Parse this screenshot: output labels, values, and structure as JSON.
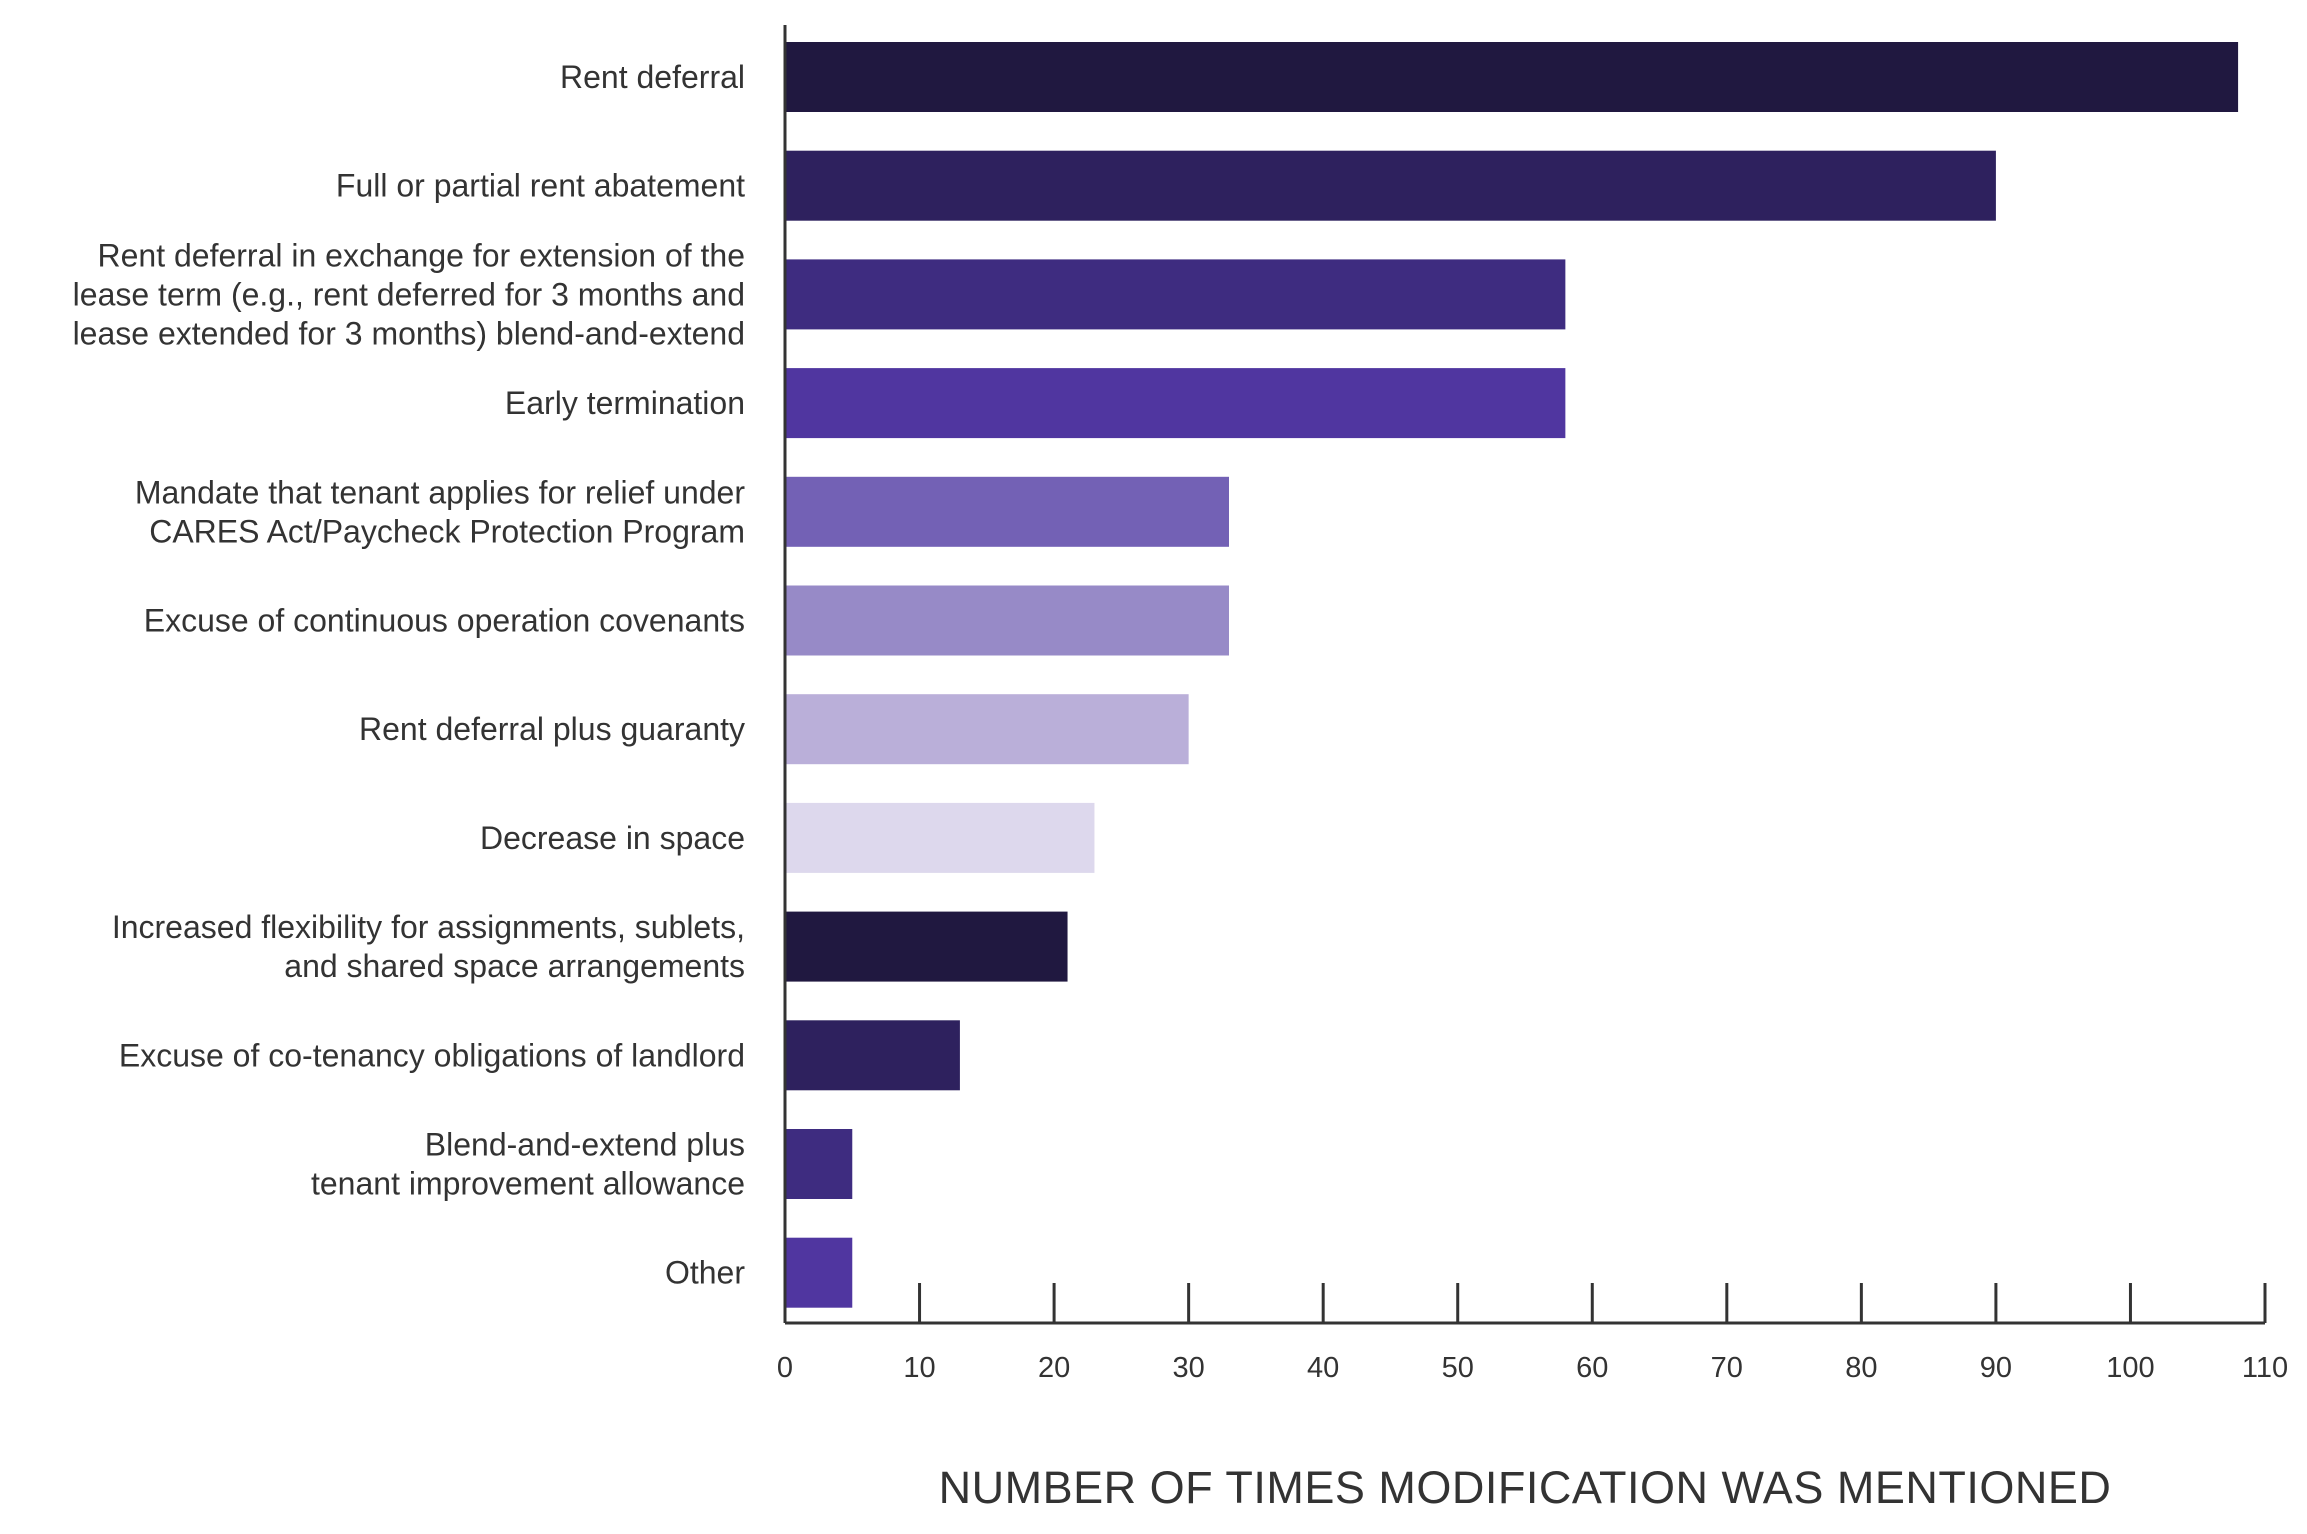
{
  "chart_data": {
    "type": "bar",
    "orientation": "horizontal",
    "categories": [
      "Rent deferral",
      "Full or partial rent abatement",
      "Rent deferral in exchange for extension of the lease term (e.g., rent deferred for 3 months and lease extended for 3 months) blend-and-extend",
      "Early termination",
      "Mandate that tenant applies for relief under CARES Act/Paycheck Protection Program",
      "Excuse of continuous operation covenants",
      "Rent deferral plus guaranty",
      "Decrease in space",
      "Increased flexibility for assignments, sublets, and shared space arrangements",
      "Excuse of co-tenancy obligations of landlord",
      "Blend-and-extend plus tenant improvement allowance",
      "Other"
    ],
    "category_lines": [
      [
        "Rent deferral"
      ],
      [
        "Full or partial rent abatement"
      ],
      [
        "Rent deferral in exchange for extension of the",
        "lease term (e.g., rent deferred for 3 months and",
        "lease extended for 3 months) blend-and-extend"
      ],
      [
        "Early termination"
      ],
      [
        "Mandate that tenant applies for relief under",
        "CARES Act/Paycheck Protection Program"
      ],
      [
        "Excuse of continuous operation covenants"
      ],
      [
        "Rent deferral plus guaranty"
      ],
      [
        "Decrease in space"
      ],
      [
        "Increased flexibility for assignments, sublets,",
        "and shared space arrangements"
      ],
      [
        "Excuse of co-tenancy obligations of landlord"
      ],
      [
        "Blend-and-extend plus",
        "tenant improvement allowance"
      ],
      [
        "Other"
      ]
    ],
    "values": [
      108,
      90,
      58,
      58,
      33,
      33,
      30,
      23,
      21,
      13,
      5,
      5
    ],
    "bar_colors": [
      "#201840",
      "#2e215e",
      "#3e2c80",
      "#5036a0",
      "#7361b5",
      "#978ac7",
      "#baafd9",
      "#ddd8ed",
      "#201840",
      "#2e215e",
      "#3e2c80",
      "#5036a0"
    ],
    "xlim": [
      0,
      110
    ],
    "xticks": [
      0,
      10,
      20,
      30,
      40,
      50,
      60,
      70,
      80,
      90,
      100,
      110
    ],
    "xlabel": "NUMBER OF TIMES MODIFICATION WAS MENTIONED",
    "ylabel": "",
    "title": "",
    "grid": false,
    "legend": "none",
    "axis_color": "#333333"
  }
}
